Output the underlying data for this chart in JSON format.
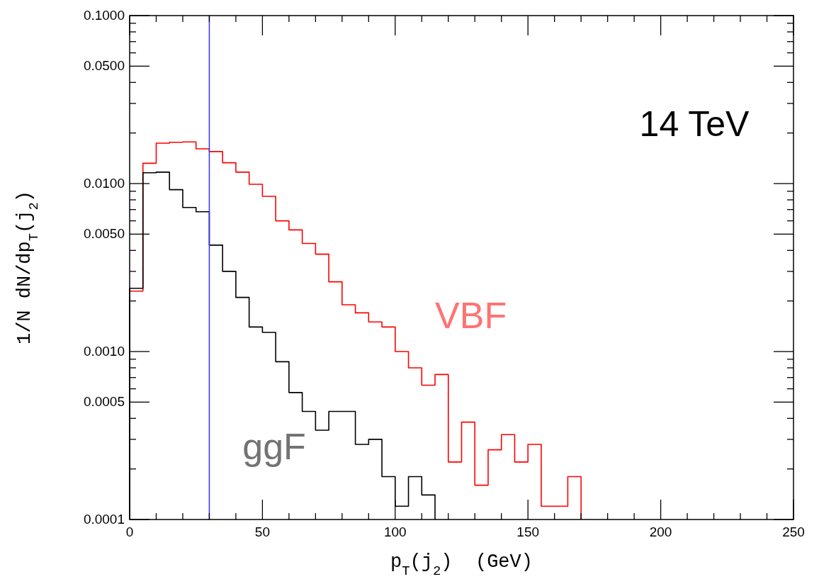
{
  "chart_data": {
    "type": "histogram",
    "xlabel": "p$_{T}$(j$_{2}$)  (GeV)",
    "ylabel": "1/N dN/dp$_{T}$(j$_{2}$)",
    "log": "y",
    "grid": false,
    "bins": [
      0,
      5,
      10,
      15,
      20,
      25,
      30,
      35,
      40,
      45,
      50,
      55,
      60,
      65,
      70,
      75,
      80,
      85,
      90,
      95,
      100,
      105,
      110,
      115,
      120,
      125,
      130,
      135,
      140,
      145,
      150,
      155,
      160,
      165,
      170
    ],
    "series": [
      {
        "name": "VBF",
        "color": "#ff0000",
        "values": [
          0.00229,
          0.0132,
          0.0174,
          0.0176,
          0.0177,
          0.0161,
          0.0155,
          0.0133,
          0.0117,
          0.0099,
          0.0084,
          0.006,
          0.0053,
          0.0044,
          0.0038,
          0.0026,
          0.0019,
          0.0017,
          0.0015,
          0.0014,
          0.001,
          0.0008,
          0.00063,
          0.00073,
          0.00022,
          0.00038,
          0.00016,
          0.00026,
          0.00032,
          0.00022,
          0.00028,
          0.00012,
          0.00012,
          0.00018
        ]
      },
      {
        "name": "ggF",
        "color": "#000000",
        "bins": [
          0,
          5,
          10,
          15,
          20,
          25,
          30,
          35,
          40,
          45,
          50,
          55,
          60,
          65,
          70,
          75,
          80,
          85,
          90,
          95,
          100,
          105,
          110,
          115
        ],
        "values": [
          0.00238,
          0.0116,
          0.0117,
          0.0092,
          0.0072,
          0.0068,
          0.0043,
          0.003,
          0.0021,
          0.0014,
          0.0013,
          0.00087,
          0.00057,
          0.00044,
          0.00034,
          0.00044,
          0.00044,
          0.00028,
          0.0003,
          0.00018,
          0.00012,
          0.00018,
          0.00014
        ]
      }
    ],
    "xlim": [
      0,
      250
    ],
    "xticks": [
      0,
      {
        "value": 10,
        "label": null
      },
      {
        "value": 20,
        "label": null
      },
      {
        "value": 30,
        "label": null
      },
      {
        "value": 40,
        "label": null
      },
      50,
      {
        "value": 60,
        "label": null
      },
      {
        "value": 70,
        "label": null
      },
      {
        "value": 80,
        "label": null
      },
      {
        "value": 90,
        "label": null
      },
      100,
      {
        "value": 110,
        "label": null
      },
      {
        "value": 120,
        "label": null
      },
      {
        "value": 130,
        "label": null
      },
      {
        "value": 140,
        "label": null
      },
      150,
      {
        "value": 160,
        "label": null
      },
      {
        "value": 170,
        "label": null
      },
      {
        "value": 180,
        "label": null
      },
      {
        "value": 190,
        "label": null
      },
      200,
      {
        "value": 210,
        "label": null
      },
      {
        "value": 220,
        "label": null
      },
      {
        "value": 230,
        "label": null
      },
      {
        "value": 240,
        "label": null
      },
      250
    ],
    "ylim": [
      0.0001,
      0.1
    ],
    "yticks": [
      {
        "value": 0.0001,
        "label": "0.0001"
      },
      {
        "value": 0.0002,
        "label": null
      },
      {
        "value": 0.0003,
        "label": null
      },
      {
        "value": 0.0004,
        "label": null
      },
      {
        "value": 0.0005,
        "label": "0.0005"
      },
      {
        "value": 0.0006,
        "label": null
      },
      {
        "value": 0.0007,
        "label": null
      },
      {
        "value": 0.0008,
        "label": null
      },
      {
        "value": 0.0009,
        "label": null
      },
      {
        "value": 0.001,
        "label": "0.0010"
      },
      {
        "value": 0.002,
        "label": null
      },
      {
        "value": 0.003,
        "label": null
      },
      {
        "value": 0.004,
        "label": null
      },
      {
        "value": 0.005,
        "label": "0.0050"
      },
      {
        "value": 0.006,
        "label": null
      },
      {
        "value": 0.007,
        "label": null
      },
      {
        "value": 0.008,
        "label": null
      },
      {
        "value": 0.009,
        "label": null
      },
      {
        "value": 0.01,
        "label": "0.0100"
      },
      {
        "value": 0.02,
        "label": null
      },
      {
        "value": 0.03,
        "label": null
      },
      {
        "value": 0.04,
        "label": null
      },
      {
        "value": 0.05,
        "label": "0.0500"
      },
      {
        "value": 0.06,
        "label": null
      },
      {
        "value": 0.07,
        "label": null
      },
      {
        "value": 0.08,
        "label": null
      },
      {
        "value": 0.09,
        "label": null
      },
      {
        "value": 0.1,
        "label": "0.1000"
      }
    ],
    "ref_lines": [
      {
        "axis": "x",
        "value": 30,
        "color": "#3333ff"
      }
    ],
    "annotations": [
      "14 TeV"
    ]
  }
}
